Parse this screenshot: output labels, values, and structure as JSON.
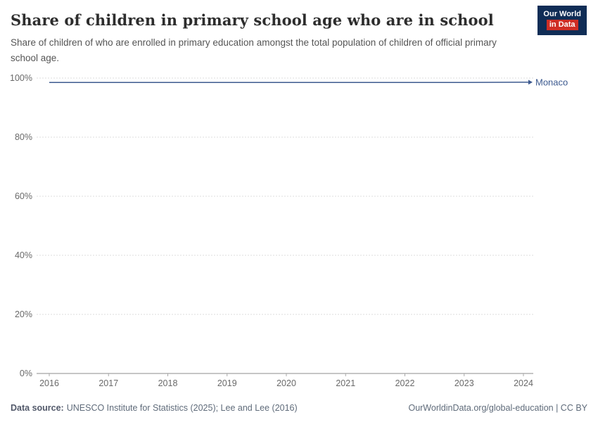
{
  "header": {
    "title": "Share of children in primary school age who are in school",
    "subtitle": "Share of children of who are enrolled in primary education amongst the total population of children of official primary school age.",
    "logo_line1": "Our World",
    "logo_line2": "in Data"
  },
  "chart_data": {
    "type": "line",
    "title": "Share of children in primary school age who are in school",
    "x": [
      2016,
      2017,
      2018,
      2019,
      2020,
      2021,
      2022,
      2023,
      2024
    ],
    "series": [
      {
        "name": "Monaco",
        "color": "#3d5a8f",
        "values": [
          98.5,
          98.5,
          98.5,
          98.5,
          98.5,
          98.5,
          98.5,
          98.5,
          98.6
        ]
      }
    ],
    "ylim": [
      0,
      100
    ],
    "yticks": [
      0,
      20,
      40,
      60,
      80,
      100
    ],
    "ytick_suffix": "%",
    "xlabel": "",
    "ylabel": "",
    "grid": true,
    "legend_position": "label-right-of-line"
  },
  "footer": {
    "source_label": "Data source:",
    "source_text": "UNESCO Institute for Statistics (2025); Lee and Lee (2016)",
    "link_text": "OurWorldinData.org/global-education | CC BY"
  },
  "colors": {
    "accent": "#3d5a8f",
    "logo_bg": "#102d56",
    "logo_red": "#cf2d24",
    "grid": "#dcdcdc",
    "axis": "#8b8b8b",
    "tick_text": "#696969"
  }
}
